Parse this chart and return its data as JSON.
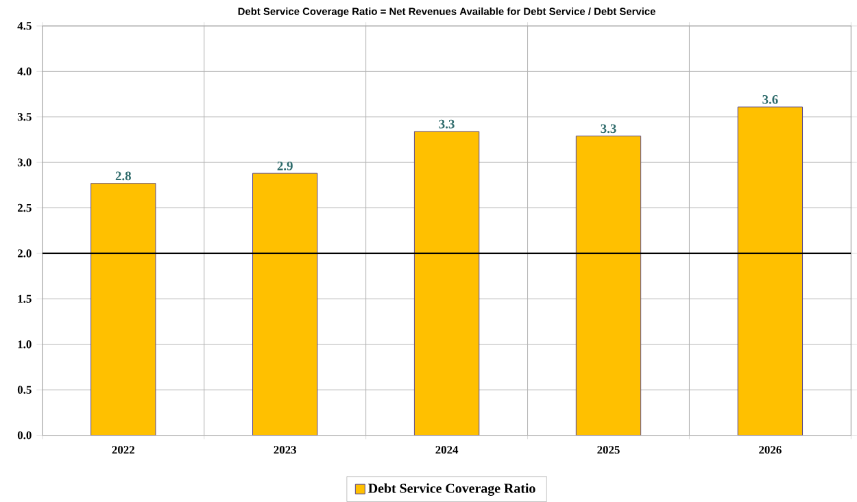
{
  "chart_data": {
    "type": "bar",
    "title": "Debt Service Coverage Ratio = Net Revenues Available for Debt Service / Debt Service",
    "categories": [
      "2022",
      "2023",
      "2024",
      "2025",
      "2026"
    ],
    "series": [
      {
        "name": "Debt Service Coverage Ratio",
        "color": "#ffc000",
        "values": [
          2.77,
          2.88,
          3.34,
          3.29,
          3.61
        ],
        "value_labels": [
          "2.8",
          "2.9",
          "3.3",
          "3.3",
          "3.6"
        ]
      }
    ],
    "ylim": [
      0,
      4.5
    ],
    "yticks": [
      {
        "value": 0,
        "label": "0.0"
      },
      {
        "value": 0.5,
        "label": "0.5"
      },
      {
        "value": 1,
        "label": "1.0"
      },
      {
        "value": 1.5,
        "label": "1.5"
      },
      {
        "value": 2,
        "label": "2.0"
      },
      {
        "value": 2.5,
        "label": "2.5"
      },
      {
        "value": 3,
        "label": "3.0"
      },
      {
        "value": 3.5,
        "label": "3.5"
      },
      {
        "value": 4,
        "label": "4.0"
      },
      {
        "value": 4.5,
        "label": "4.5"
      }
    ],
    "ref_lines": [
      {
        "axis": "y",
        "value": 2.0,
        "color": "#000000"
      }
    ],
    "grid": true,
    "legend": "bottom"
  }
}
